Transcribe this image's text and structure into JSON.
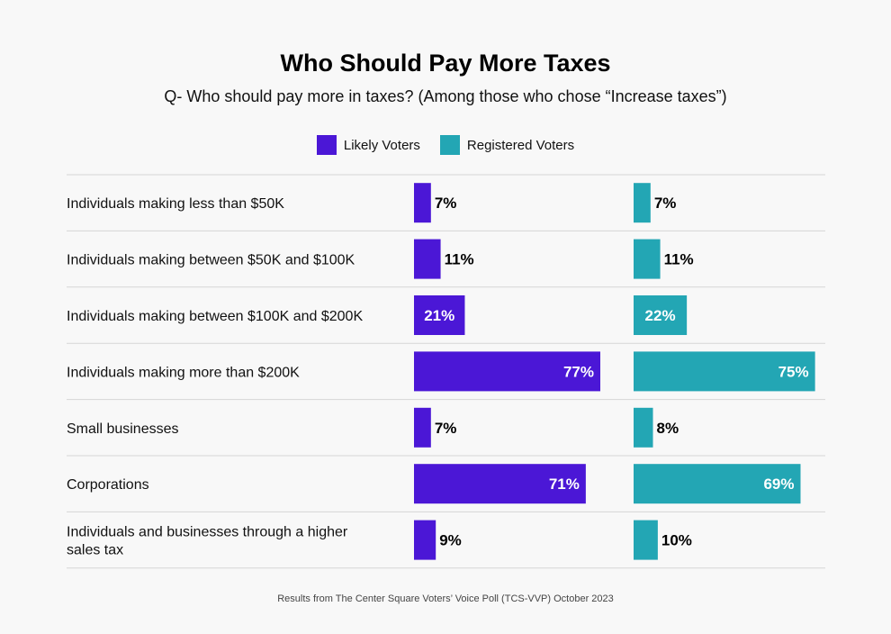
{
  "title": "Who Should Pay More Taxes",
  "subtitle": "Q- Who should pay more in taxes? (Among those who chose “Increase taxes”)",
  "footnote": "Results from The Center Square Voters’ Voice Poll (TCS-VVP) October 2023",
  "chart_data": {
    "type": "bar",
    "orientation": "horizontal",
    "categories": [
      [
        "Individuals making less than $50K"
      ],
      [
        "Individuals making between $50K and $100K"
      ],
      [
        "Individuals making between $100K and $200K"
      ],
      [
        "Individuals making more than $200K"
      ],
      [
        "Small businesses"
      ],
      [
        "Corporations"
      ],
      [
        "Individuals and businesses through a higher",
        "sales tax"
      ]
    ],
    "series": [
      {
        "name": "Likely Voters",
        "color": "#4b17d6",
        "values": [
          7,
          11,
          21,
          77,
          7,
          71,
          9
        ]
      },
      {
        "name": "Registered Voters",
        "color": "#23a6b4",
        "values": [
          7,
          11,
          22,
          75,
          8,
          69,
          10
        ]
      }
    ],
    "value_suffix": "%",
    "xlim": [
      0,
      77
    ],
    "legend": "top-center",
    "grid": false
  }
}
